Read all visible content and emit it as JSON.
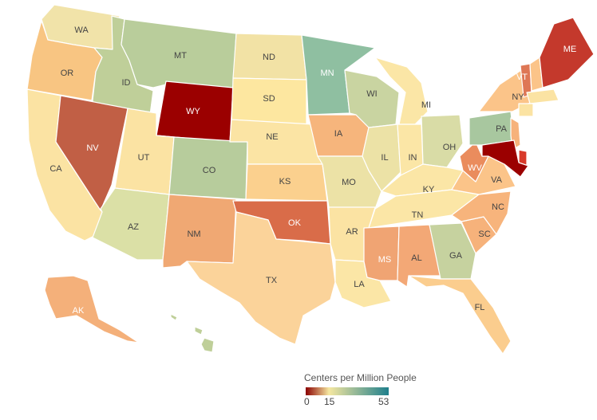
{
  "legend": {
    "title": "Centers per Million People",
    "min_label": "0",
    "mid_label": "15",
    "max_label": "53",
    "stops": [
      "#8b0000",
      "#f5e7a0",
      "#1f7f8c"
    ]
  },
  "states": [
    {
      "code": "WA",
      "label": "WA",
      "color": "#f1e3a9",
      "dark": true
    },
    {
      "code": "OR",
      "label": "OR",
      "color": "#f8c582",
      "dark": true
    },
    {
      "code": "CA",
      "label": "CA",
      "color": "#fbe3a3",
      "dark": true
    },
    {
      "code": "ID",
      "label": "ID",
      "color": "#bfcf99",
      "dark": true
    },
    {
      "code": "NV",
      "label": "NV",
      "color": "#c15f45",
      "dark": false
    },
    {
      "code": "MT",
      "label": "MT",
      "color": "#b9cd9b",
      "dark": true
    },
    {
      "code": "WY",
      "label": "WY",
      "color": "#9b0000",
      "dark": false
    },
    {
      "code": "UT",
      "label": "UT",
      "color": "#fbe3a3",
      "dark": true
    },
    {
      "code": "AZ",
      "label": "AZ",
      "color": "#dbe0a6",
      "dark": true
    },
    {
      "code": "CO",
      "label": "CO",
      "color": "#b7cc9c",
      "dark": true
    },
    {
      "code": "NM",
      "label": "NM",
      "color": "#f0a873",
      "dark": true
    },
    {
      "code": "ND",
      "label": "ND",
      "color": "#f2e2a5",
      "dark": true
    },
    {
      "code": "SD",
      "label": "SD",
      "color": "#fde7a0",
      "dark": true
    },
    {
      "code": "NE",
      "label": "NE",
      "color": "#fbe4a4",
      "dark": true
    },
    {
      "code": "KS",
      "label": "KS",
      "color": "#fbd08e",
      "dark": true
    },
    {
      "code": "OK",
      "label": "OK",
      "color": "#d96c49",
      "dark": false
    },
    {
      "code": "TX",
      "label": "TX",
      "color": "#fbd39a",
      "dark": true
    },
    {
      "code": "MN",
      "label": "MN",
      "color": "#8fbfa1",
      "dark": false
    },
    {
      "code": "IA",
      "label": "IA",
      "color": "#f6b57c",
      "dark": true
    },
    {
      "code": "MO",
      "label": "MO",
      "color": "#ece2a6",
      "dark": true
    },
    {
      "code": "AR",
      "label": "AR",
      "color": "#fbe3a3",
      "dark": true
    },
    {
      "code": "LA",
      "label": "LA",
      "color": "#fbe6a6",
      "dark": true
    },
    {
      "code": "WI",
      "label": "WI",
      "color": "#c9d4a1",
      "dark": true
    },
    {
      "code": "IL",
      "label": "IL",
      "color": "#ece2a6",
      "dark": true
    },
    {
      "code": "MI",
      "label": "MI",
      "color": "#fbe6a6",
      "dark": true
    },
    {
      "code": "IN",
      "label": "IN",
      "color": "#fbe6a6",
      "dark": true
    },
    {
      "code": "OH",
      "label": "OH",
      "color": "#d9dca6",
      "dark": true
    },
    {
      "code": "KY",
      "label": "KY",
      "color": "#fbe6a6",
      "dark": true
    },
    {
      "code": "TN",
      "label": "TN",
      "color": "#fbe6a6",
      "dark": true
    },
    {
      "code": "MS",
      "label": "MS",
      "color": "#f0a473",
      "dark": false
    },
    {
      "code": "AL",
      "label": "AL",
      "color": "#f3a876",
      "dark": true
    },
    {
      "code": "GA",
      "label": "GA",
      "color": "#c6d29f",
      "dark": true
    },
    {
      "code": "FL",
      "label": "FL",
      "color": "#fbcd8e",
      "dark": true
    },
    {
      "code": "SC",
      "label": "SC",
      "color": "#f6b27b",
      "dark": true
    },
    {
      "code": "NC",
      "label": "NC",
      "color": "#f7b47c",
      "dark": true
    },
    {
      "code": "VA",
      "label": "VA",
      "color": "#fbc489",
      "dark": true
    },
    {
      "code": "WV",
      "label": "WV",
      "color": "#ea8c5d",
      "dark": false
    },
    {
      "code": "PA",
      "label": "PA",
      "color": "#a8c79f",
      "dark": true
    },
    {
      "code": "NY",
      "label": "NY",
      "color": "#fbc489",
      "dark": true
    },
    {
      "code": "VT",
      "label": "VT",
      "color": "#de7755",
      "dark": false
    },
    {
      "code": "NH",
      "label": "",
      "color": "#fbc489",
      "dark": true
    },
    {
      "code": "ME",
      "label": "ME",
      "color": "#c4392c",
      "dark": false
    },
    {
      "code": "MA",
      "label": "",
      "color": "#fbe3a3",
      "dark": true
    },
    {
      "code": "CT",
      "label": "",
      "color": "#fbe3a3",
      "dark": true
    },
    {
      "code": "NJ",
      "label": "",
      "color": "#f6b27b",
      "dark": true
    },
    {
      "code": "DE",
      "label": "",
      "color": "#d83a2a",
      "dark": false
    },
    {
      "code": "MD",
      "label": "",
      "color": "#9b0000",
      "dark": false
    },
    {
      "code": "AK",
      "label": "AK",
      "color": "#f4b07a",
      "dark": false
    },
    {
      "code": "HI",
      "label": "",
      "color": "#bfcf99",
      "dark": true
    }
  ]
}
